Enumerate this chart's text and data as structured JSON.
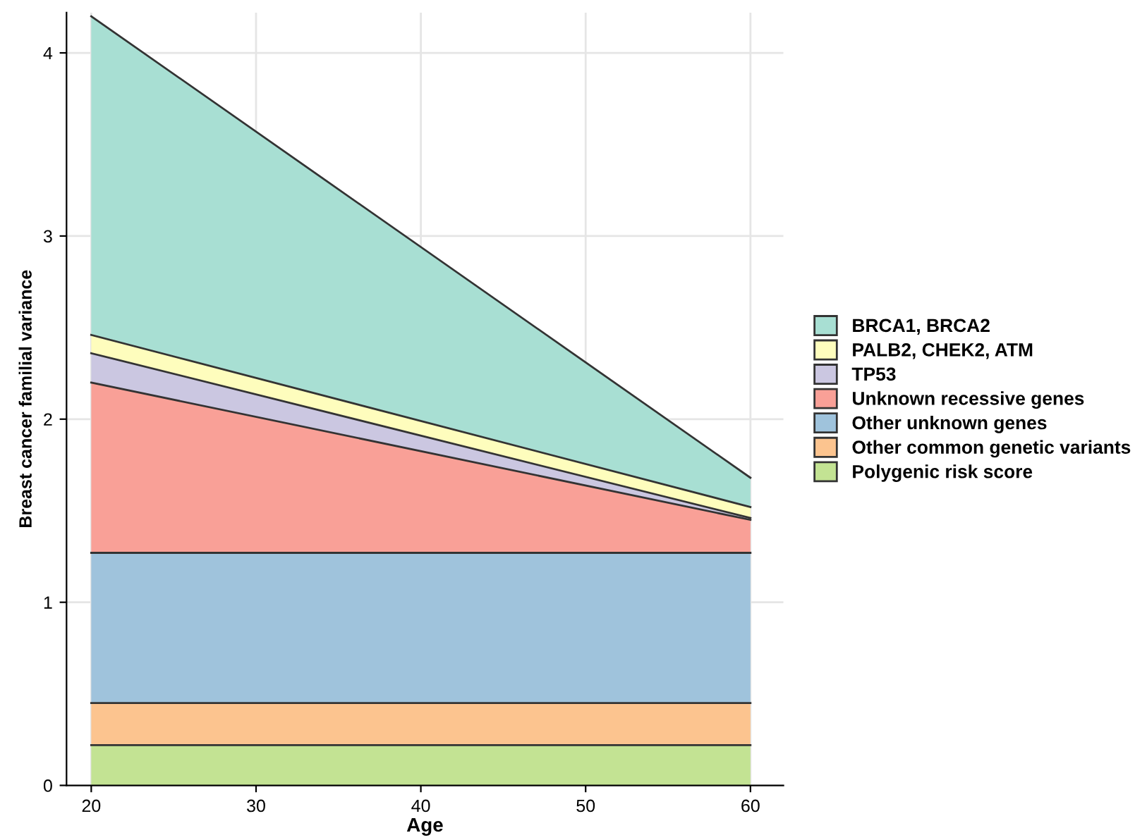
{
  "chart_data": {
    "type": "area",
    "stacked": true,
    "xlabel": "Age",
    "ylabel": "Breast cancer familial variance",
    "x": [
      20,
      60
    ],
    "series": [
      {
        "name": "Polygenic risk score",
        "color": "#c3e393",
        "values": [
          0.22,
          0.22
        ]
      },
      {
        "name": "Other common genetic variants",
        "color": "#fcc48f",
        "values": [
          0.23,
          0.23
        ]
      },
      {
        "name": "Other unknown genes",
        "color": "#9fc3dc",
        "values": [
          0.82,
          0.82
        ]
      },
      {
        "name": "Unknown recessive genes",
        "color": "#f9a097",
        "values": [
          0.93,
          0.18
        ]
      },
      {
        "name": "TP53",
        "color": "#cbc7e1",
        "values": [
          0.16,
          0.01
        ]
      },
      {
        "name": "PALB2, CHEK2, ATM",
        "color": "#fefdbd",
        "values": [
          0.1,
          0.06
        ]
      },
      {
        "name": "BRCA1, BRCA2",
        "color": "#a8dfd3",
        "values": [
          1.74,
          0.16
        ]
      }
    ],
    "xlim": [
      18.5,
      62
    ],
    "xticks": [
      20,
      30,
      40,
      50,
      60
    ],
    "ylim": [
      0,
      4.22
    ],
    "yticks": [
      0,
      1,
      2,
      3,
      4
    ],
    "grid": true,
    "legend": "right"
  }
}
